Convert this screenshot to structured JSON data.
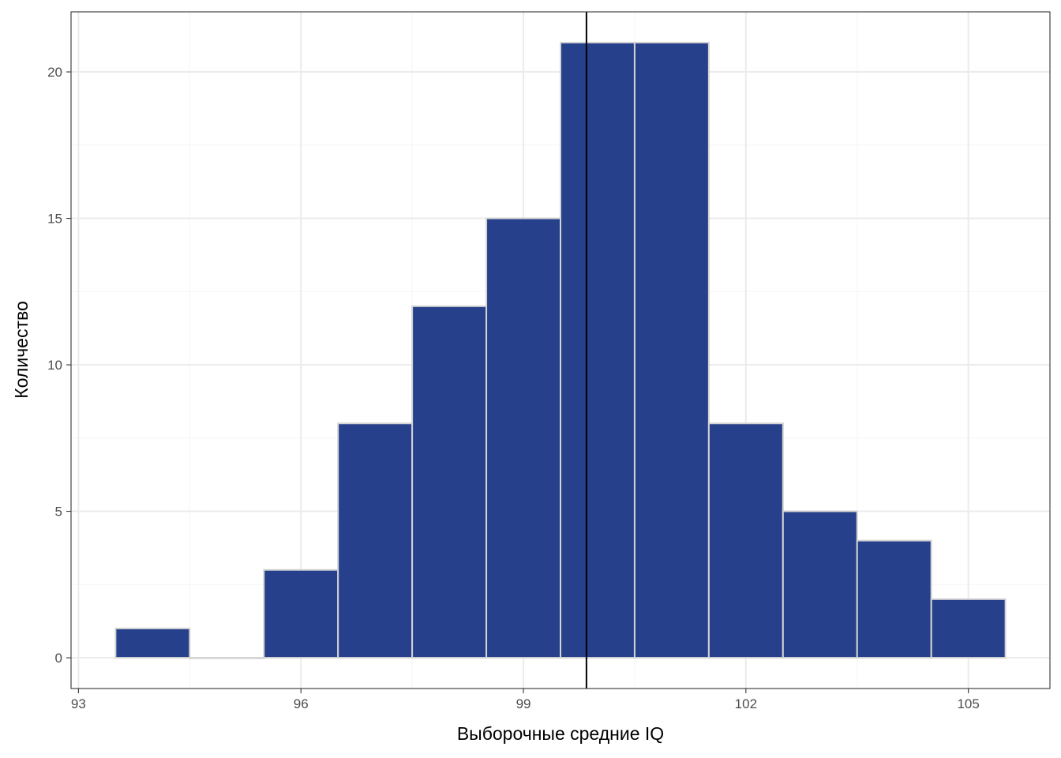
{
  "chart_data": {
    "type": "bar",
    "xlabel": "Выборочные средние IQ",
    "ylabel": "Количество",
    "xlim": [
      92.9,
      106.1
    ],
    "ylim": [
      -1.05,
      22.05
    ],
    "bin_width": 1,
    "bins": [
      {
        "center": 94,
        "count": 1
      },
      {
        "center": 95,
        "count": 0
      },
      {
        "center": 96,
        "count": 3
      },
      {
        "center": 97,
        "count": 8
      },
      {
        "center": 98,
        "count": 12
      },
      {
        "center": 99,
        "count": 15
      },
      {
        "center": 100,
        "count": 21
      },
      {
        "center": 101,
        "count": 21
      },
      {
        "center": 102,
        "count": 8
      },
      {
        "center": 103,
        "count": 5
      },
      {
        "center": 104,
        "count": 4
      },
      {
        "center": 105,
        "count": 2
      }
    ],
    "x_ticks": [
      {
        "value": 93,
        "label": "93"
      },
      {
        "value": 96,
        "label": "96"
      },
      {
        "value": 99,
        "label": "99"
      },
      {
        "value": 102,
        "label": "102"
      },
      {
        "value": 105,
        "label": "105"
      }
    ],
    "y_ticks": [
      {
        "value": 0,
        "label": "0"
      },
      {
        "value": 5,
        "label": "5"
      },
      {
        "value": 10,
        "label": "10"
      },
      {
        "value": 15,
        "label": "15"
      },
      {
        "value": 20,
        "label": "20"
      }
    ],
    "x_minor": [
      94.5,
      97.5,
      100.5,
      103.5
    ],
    "y_minor": [
      2.5,
      7.5,
      12.5,
      17.5
    ],
    "mean_line": 99.85,
    "grid": true,
    "colors": {
      "bar_fill": "#26408b",
      "bar_outline": "#d3d3d3",
      "mean_line": "#000000",
      "grid_major": "#ebebeb",
      "grid_minor": "#f5f5f5",
      "panel_border": "#333333"
    }
  }
}
